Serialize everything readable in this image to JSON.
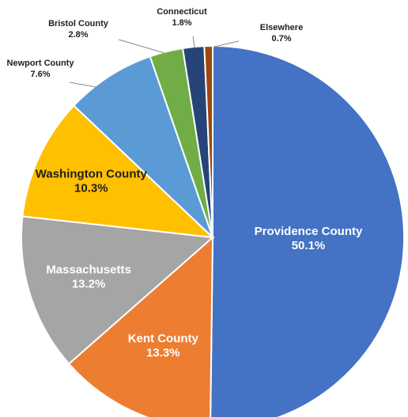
{
  "chart_data": {
    "type": "pie",
    "slices": [
      {
        "label": "Providence County",
        "pct_label": "50.1%",
        "value": 50.1,
        "color": "#4472C4",
        "text_color": "#ffffff",
        "placement": "inside"
      },
      {
        "label": "Kent County",
        "pct_label": "13.3%",
        "value": 13.3,
        "color": "#ED7D31",
        "text_color": "#ffffff",
        "placement": "inside"
      },
      {
        "label": "Massachusetts",
        "pct_label": "13.2%",
        "value": 13.2,
        "color": "#A5A5A5",
        "text_color": "#ffffff",
        "placement": "inside"
      },
      {
        "label": "Washington County",
        "pct_label": "10.3%",
        "value": 10.3,
        "color": "#FFC000",
        "text_color": "#1f1f1f",
        "placement": "inside"
      },
      {
        "label": "Newport County",
        "pct_label": "7.6%",
        "value": 7.6,
        "color": "#5B9BD5",
        "text_color": "#1f1f1f",
        "placement": "outside"
      },
      {
        "label": "Bristol County",
        "pct_label": "2.8%",
        "value": 2.8,
        "color": "#70AD47",
        "text_color": "#1f1f1f",
        "placement": "outside"
      },
      {
        "label": "Connecticut",
        "pct_label": "1.8%",
        "value": 1.8,
        "color": "#264478",
        "text_color": "#1f1f1f",
        "placement": "outside"
      },
      {
        "label": "Elsewhere",
        "pct_label": "0.7%",
        "value": 0.7,
        "color": "#9E480E",
        "text_color": "#1f1f1f",
        "placement": "outside"
      }
    ],
    "start": "12 o'clock",
    "direction": "clockwise",
    "legend": "none"
  }
}
